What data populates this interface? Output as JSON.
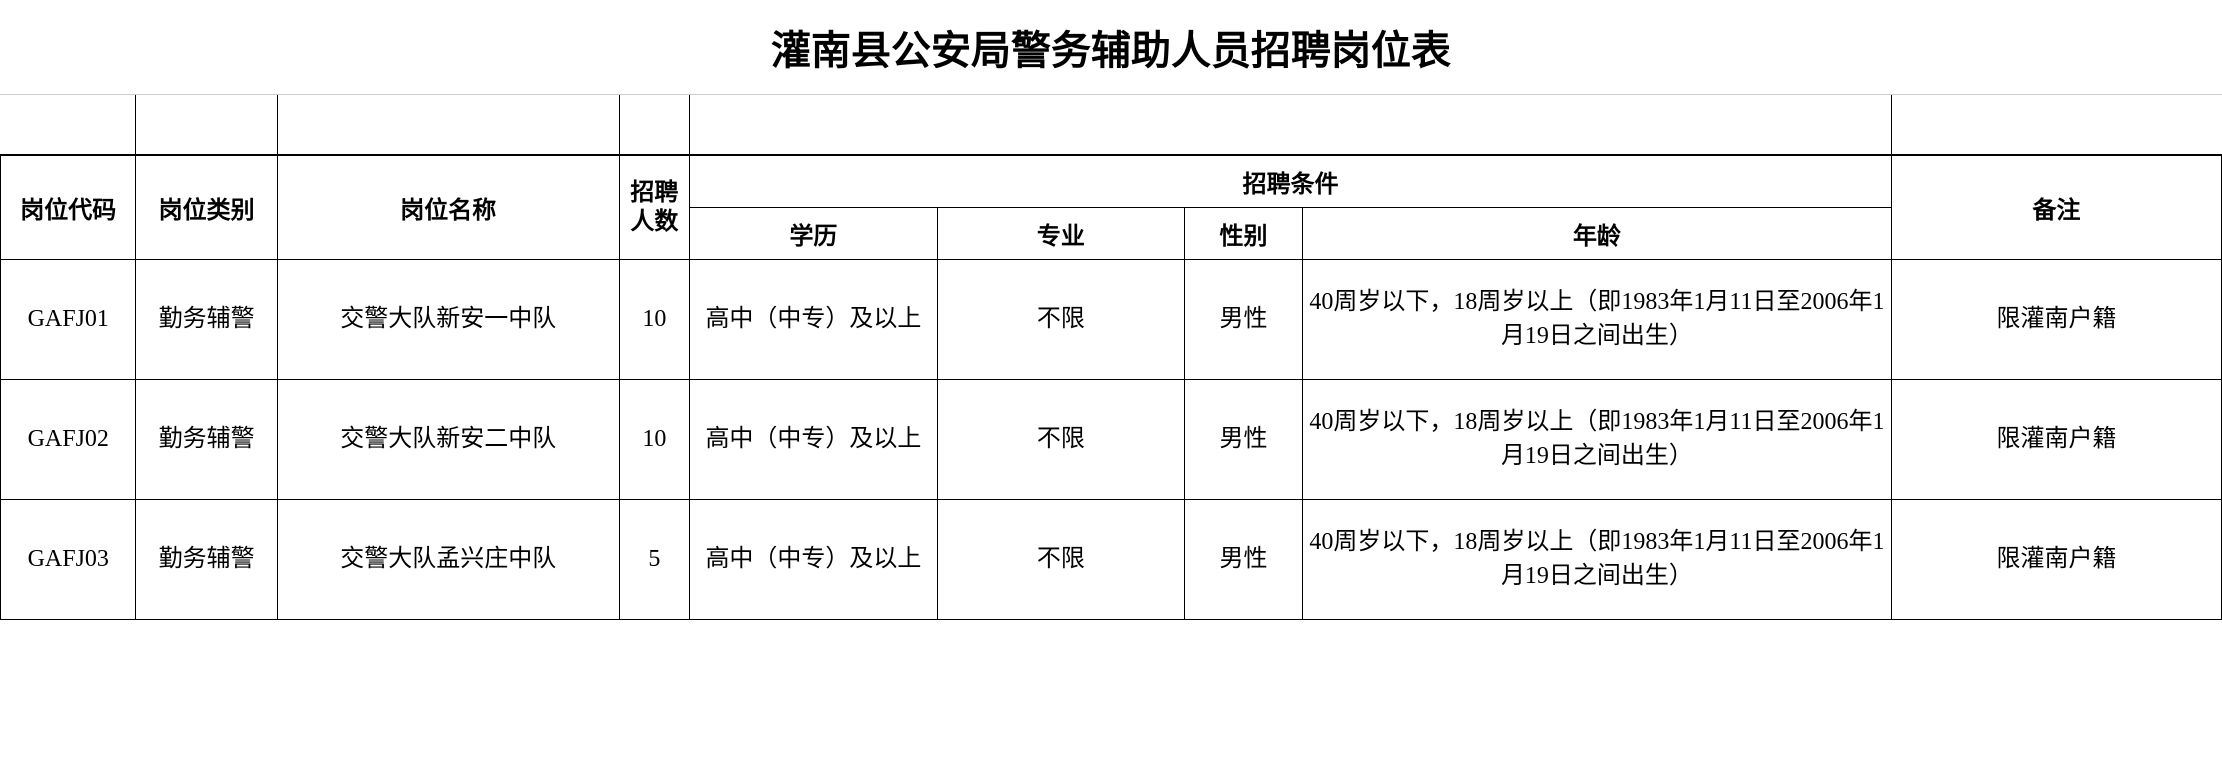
{
  "title": "灌南县公安局警务辅助人员招聘岗位表",
  "colors": {
    "background": "#ffffff",
    "border": "#000000",
    "lightBorder": "#cccccc",
    "text": "#000000"
  },
  "typography": {
    "title_fontsize": 40,
    "header_fontsize": 24,
    "cell_fontsize": 24,
    "title_weight": "bold",
    "header_weight": "bold"
  },
  "table": {
    "headers": {
      "code": "岗位代码",
      "type": "岗位类别",
      "name": "岗位名称",
      "count": "招聘人数",
      "conditions": "招聘条件",
      "education": "学历",
      "major": "专业",
      "gender": "性别",
      "age": "年龄",
      "note": "备注"
    },
    "column_widths": {
      "code": 115,
      "type": 120,
      "name": 290,
      "count": 60,
      "edu": 210,
      "major": 210,
      "gender": 100,
      "age": 500,
      "note": 280
    },
    "rows": [
      {
        "code": "GAFJ01",
        "type": "勤务辅警",
        "name": "交警大队新安一中队",
        "count": "10",
        "education": "高中（中专）及以上",
        "major": "不限",
        "gender": "男性",
        "age": "40周岁以下，18周岁以上（即1983年1月11日至2006年1月19日之间出生）",
        "note": "限灌南户籍"
      },
      {
        "code": "GAFJ02",
        "type": "勤务辅警",
        "name": "交警大队新安二中队",
        "count": "10",
        "education": "高中（中专）及以上",
        "major": "不限",
        "gender": "男性",
        "age": "40周岁以下，18周岁以上（即1983年1月11日至2006年1月19日之间出生）",
        "note": "限灌南户籍"
      },
      {
        "code": "GAFJ03",
        "type": "勤务辅警",
        "name": "交警大队孟兴庄中队",
        "count": "5",
        "education": "高中（中专）及以上",
        "major": "不限",
        "gender": "男性",
        "age": "40周岁以下，18周岁以上（即1983年1月11日至2006年1月19日之间出生）",
        "note": "限灌南户籍"
      }
    ]
  }
}
